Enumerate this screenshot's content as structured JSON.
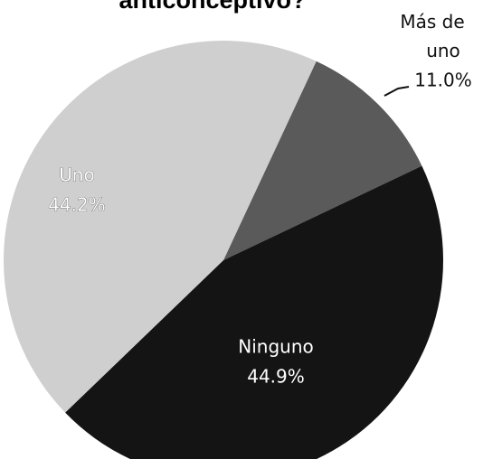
{
  "chart_data": {
    "type": "pie",
    "title": "anticonceptivo?",
    "categories": [
      "Más de uno",
      "Ninguno",
      "Uno"
    ],
    "values": [
      11.0,
      44.9,
      44.2
    ],
    "value_labels": [
      "11.0%",
      "44.9%",
      "44.2%"
    ],
    "colors": [
      "#5a5a5a",
      "#141414",
      "#cfcfcf"
    ]
  }
}
